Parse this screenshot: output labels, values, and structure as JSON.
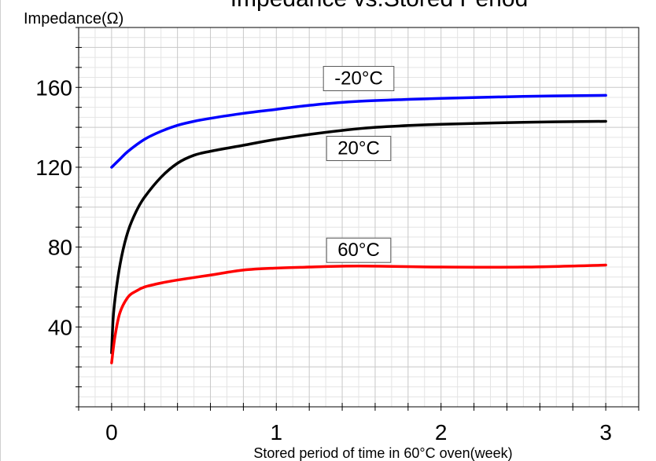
{
  "chart_data": {
    "type": "line",
    "title": "Impedance vs.Stored Period",
    "ylabel": "Impedance(Ω)",
    "xlabel": "Stored period of time in 60°C oven(week)",
    "xlim": [
      -0.2,
      3.2
    ],
    "ylim": [
      0,
      190
    ],
    "x_ticks": [
      0,
      1,
      2,
      3
    ],
    "y_ticks": [
      40,
      80,
      120,
      160
    ],
    "grid": true,
    "series": [
      {
        "name": "-20°C",
        "color": "#0000ff",
        "x": [
          0,
          0.05,
          0.1,
          0.2,
          0.3,
          0.4,
          0.5,
          0.6,
          0.8,
          1.0,
          1.2,
          1.5,
          2.0,
          2.5,
          3.0
        ],
        "y": [
          120,
          124,
          128,
          134,
          138,
          141,
          143,
          144.5,
          147,
          149,
          151,
          153,
          154.5,
          155.5,
          156
        ]
      },
      {
        "name": "20°C",
        "color": "#000000",
        "x": [
          0,
          0.01,
          0.03,
          0.06,
          0.1,
          0.15,
          0.2,
          0.3,
          0.4,
          0.5,
          0.6,
          0.8,
          1.0,
          1.3,
          1.6,
          2.0,
          2.5,
          3.0
        ],
        "y": [
          27,
          45,
          60,
          75,
          88,
          98,
          105,
          115,
          122,
          126,
          128,
          131,
          134,
          137.5,
          140,
          141.5,
          142.5,
          143
        ]
      },
      {
        "name": "60°C",
        "color": "#ff0000",
        "x": [
          0,
          0.02,
          0.05,
          0.1,
          0.15,
          0.2,
          0.3,
          0.4,
          0.6,
          0.8,
          1.0,
          1.2,
          1.5,
          2.0,
          2.5,
          3.0
        ],
        "y": [
          22,
          35,
          47,
          55,
          58,
          60,
          62,
          63.5,
          66,
          68.5,
          69.5,
          70,
          70.5,
          70,
          70,
          71
        ]
      }
    ],
    "annotations": [
      {
        "text": "-20°C",
        "series": "-20°C"
      },
      {
        "text": "20°C",
        "series": "20°C"
      },
      {
        "text": "60°C",
        "series": "60°C"
      }
    ]
  }
}
